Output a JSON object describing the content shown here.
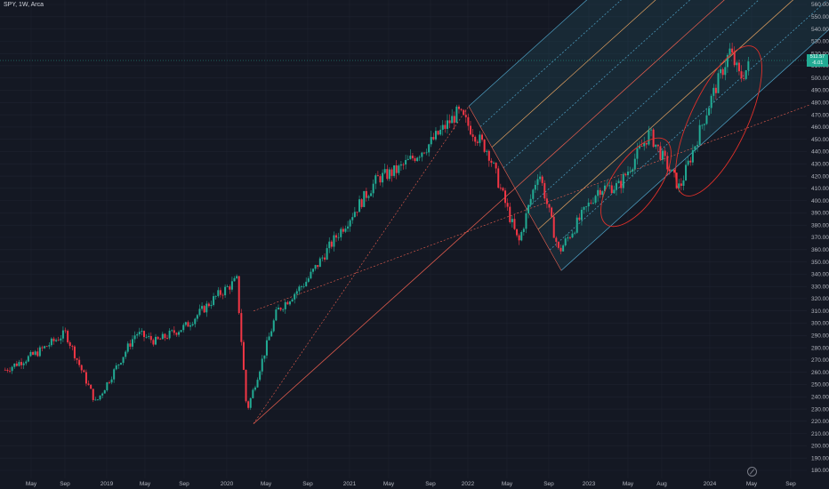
{
  "symbol": "SPY, 1W, Arca",
  "price_tag": {
    "price": "511.57",
    "change": "-6.01"
  },
  "colors": {
    "background": "#141823",
    "up": "#22ab94",
    "down": "#f23645",
    "grid": "#1e2330",
    "pitchfork_fill": "#1f4a5a",
    "pitchfork_line": "#4fa3c7",
    "pitchfork_warm": "#f06050",
    "annotation": "#e0302a"
  },
  "chart_data": {
    "type": "candlestick",
    "symbol": "SPY",
    "interval": "1W",
    "exchange": "Arca",
    "ylim": [
      175,
      562
    ],
    "y_ticks": [
      180,
      190,
      200,
      210,
      220,
      230,
      240,
      250,
      260,
      270,
      280,
      290,
      300,
      310,
      320,
      330,
      340,
      350,
      360,
      370,
      380,
      390,
      400,
      410,
      420,
      430,
      440,
      450,
      460,
      470,
      480,
      490,
      500,
      510,
      520,
      530,
      540,
      550,
      560
    ],
    "x_ticks": [
      "May",
      "Sep",
      "2019",
      "May",
      "Sep",
      "2020",
      "May",
      "Sep",
      "2021",
      "May",
      "Sep",
      "2022",
      "May",
      "Sep",
      "2023",
      "May",
      "Aug",
      "2024",
      "May",
      "Sep"
    ],
    "price_path": [
      [
        "2018-03",
        262
      ],
      [
        "2018-06",
        275
      ],
      [
        "2018-09",
        292
      ],
      [
        "2018-12",
        235
      ],
      [
        "2019-04",
        292
      ],
      [
        "2019-06",
        285
      ],
      [
        "2019-09",
        298
      ],
      [
        "2019-12",
        322
      ],
      [
        "2020-02",
        335
      ],
      [
        "2020-03",
        228
      ],
      [
        "2020-06",
        310
      ],
      [
        "2020-09",
        335
      ],
      [
        "2020-12",
        372
      ],
      [
        "2021-04",
        418
      ],
      [
        "2021-06",
        425
      ],
      [
        "2021-09",
        445
      ],
      [
        "2021-12",
        472
      ],
      [
        "2022-03",
        440
      ],
      [
        "2022-06",
        365
      ],
      [
        "2022-08",
        425
      ],
      [
        "2022-10",
        358
      ],
      [
        "2023-02",
        410
      ],
      [
        "2023-04",
        412
      ],
      [
        "2023-07",
        455
      ],
      [
        "2023-10",
        410
      ],
      [
        "2024-01",
        480
      ],
      [
        "2024-03",
        522
      ],
      [
        "2024-04",
        500
      ],
      [
        "2024-05",
        511
      ]
    ],
    "last_price": 511.57,
    "last_change": -6.01,
    "grid": true
  }
}
